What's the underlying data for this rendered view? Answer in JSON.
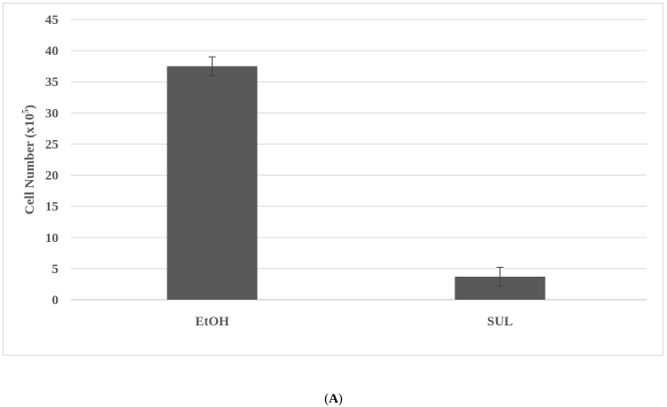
{
  "chart_data": {
    "type": "bar",
    "categories": [
      "EtOH",
      "SUL"
    ],
    "values": [
      37.5,
      3.7
    ],
    "error": [
      1.5,
      1.5
    ],
    "ylabel": "Cell Number (x10",
    "ylabel_sup": "5",
    "ylabel_end": ")",
    "ylim": [
      0,
      45
    ],
    "yticks": [
      0,
      5,
      10,
      15,
      20,
      25,
      30,
      35,
      40,
      45
    ],
    "grid": true,
    "colors": {
      "bar": "#595959",
      "grid": "#d9d9d9",
      "axis": "#bfbfbf",
      "text": "#595959"
    }
  },
  "caption": {
    "open": "(",
    "letter": "A",
    "close": ")"
  }
}
